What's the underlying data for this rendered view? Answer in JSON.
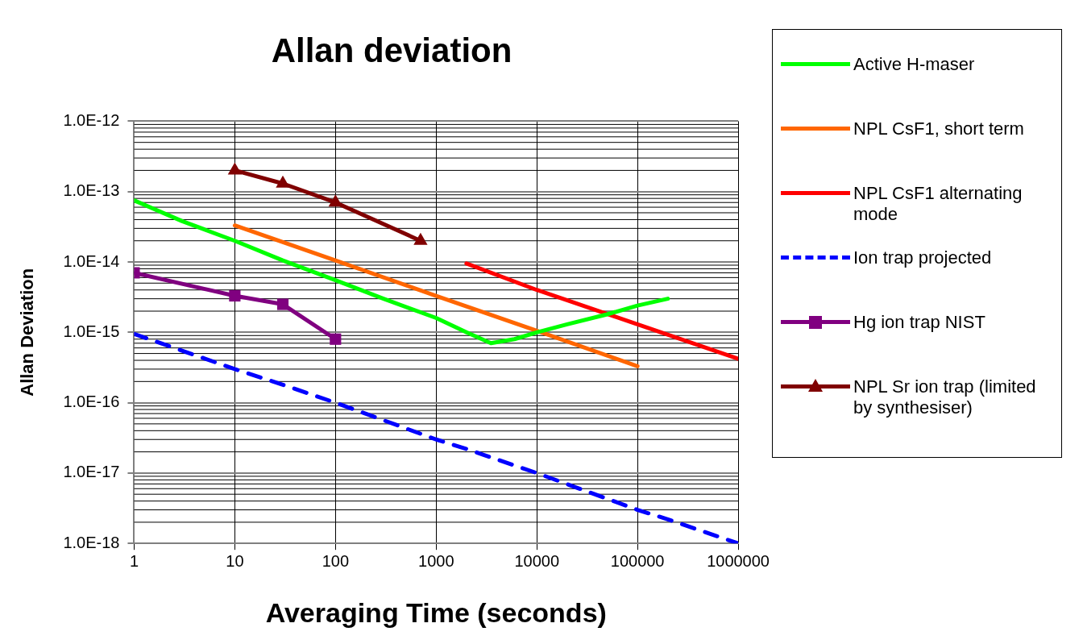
{
  "chart_data": {
    "type": "line",
    "title": "Allan deviation",
    "xlabel": "Averaging Time (seconds)",
    "ylabel": "Allan Deviation",
    "log": "xy",
    "grid": true,
    "legend": "right",
    "xlim": [
      1,
      1000000
    ],
    "xticks": [
      1,
      10,
      100,
      1000,
      10000,
      100000,
      1000000
    ],
    "ylim": [
      1e-18,
      1e-12
    ],
    "yticks": [
      {
        "value": 1e-18,
        "label": "1.0E-18"
      },
      {
        "value": 1e-17,
        "label": "1.0E-17"
      },
      {
        "value": 1e-16,
        "label": "1.0E-16"
      },
      {
        "value": 1e-15,
        "label": "1.0E-15"
      },
      {
        "value": 1e-14,
        "label": "1.0E-14"
      },
      {
        "value": 1e-13,
        "label": "1.0E-13"
      },
      {
        "value": 1e-12,
        "label": "1.0E-12"
      }
    ],
    "series": [
      {
        "name": "Active H-maser",
        "color": "#00ff00",
        "marker": "none",
        "line_style": "solid",
        "x": [
          1,
          3,
          10,
          30,
          100,
          300,
          1000,
          2000,
          3500,
          6000,
          10000,
          20000,
          50000,
          100000,
          200000
        ],
        "values": [
          7.5e-14,
          3.8e-14,
          2e-14,
          1.05e-14,
          5.5e-15,
          3e-15,
          1.6e-15,
          1e-15,
          7e-16,
          8e-16,
          1e-15,
          1.3e-15,
          1.8e-15,
          2.4e-15,
          3e-15
        ]
      },
      {
        "name": "NPL CsF1, short term",
        "color": "#ff6600",
        "marker": "none",
        "line_style": "solid",
        "x": [
          10,
          100,
          1000,
          10000,
          100000
        ],
        "values": [
          3.3e-14,
          1.05e-14,
          3.3e-15,
          1.05e-15,
          3.3e-16
        ]
      },
      {
        "name": "NPL CsF1 alternating mode",
        "color": "#ff0000",
        "marker": "none",
        "line_style": "solid",
        "x": [
          2000,
          10000,
          100000,
          1000000
        ],
        "values": [
          9.5e-15,
          4e-15,
          1.3e-15,
          4.2e-16
        ]
      },
      {
        "name": "Ion trap projected",
        "color": "#0000ff",
        "marker": "none",
        "line_style": "dashed",
        "x": [
          1,
          10,
          30,
          100,
          1000,
          2000,
          3000,
          10000,
          100000,
          200000,
          1000000
        ],
        "values": [
          9.5e-16,
          3e-16,
          1.8e-16,
          1e-16,
          3e-17,
          2.2e-17,
          1.8e-17,
          1e-17,
          3e-18,
          2.2e-18,
          1e-18
        ]
      },
      {
        "name": "Hg ion trap NIST",
        "color": "#800080",
        "marker": "square",
        "line_style": "solid",
        "x": [
          1,
          10,
          30,
          100
        ],
        "values": [
          7e-15,
          3.3e-15,
          2.5e-15,
          8e-16
        ]
      },
      {
        "name": "NPL Sr ion trap (limited by synthesiser)",
        "color": "#800000",
        "marker": "triangle",
        "line_style": "solid",
        "x": [
          10,
          30,
          100,
          700
        ],
        "values": [
          2e-13,
          1.3e-13,
          7e-14,
          2e-14
        ]
      }
    ]
  }
}
